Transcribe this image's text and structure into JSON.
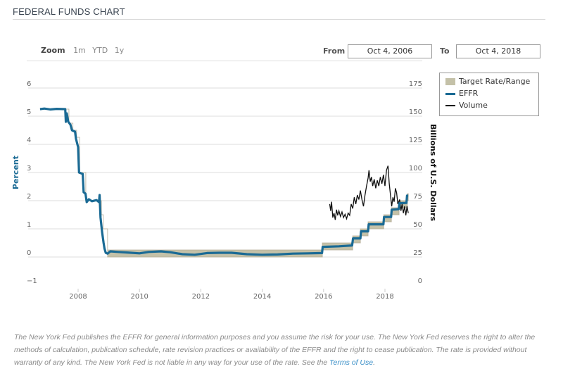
{
  "header": {
    "title": "FEDERAL FUNDS CHART"
  },
  "range_selector": {
    "zoom_label": "Zoom",
    "buttons": [
      "1m",
      "YTD",
      "1y"
    ],
    "from_label": "From",
    "from_value": "Oct 4, 2006",
    "to_label": "To",
    "to_value": "Oct 4, 2018"
  },
  "footer": {
    "text": "The New York Fed publishes the EFFR for general information purposes and you assume the risk for your use. The New York Fed reserves the right to alter the methods of calculation, publication schedule, rate revision practices or availability of the EFFR and the right to cease publication. The rate is provided without warranty of any kind. The New York Fed is not liable in any way for your use of the rate. See the ",
    "link": "Terms of Use",
    "end": "."
  },
  "chart_data": {
    "type": "line",
    "ylabel": "Percent",
    "y2label": "Billions of U.S. Dollars",
    "ylim": [
      -1,
      6
    ],
    "y2lim": [
      0,
      175
    ],
    "yticks": [
      "6",
      "5",
      "4",
      "3",
      "2",
      "1",
      "0",
      "−1"
    ],
    "y2ticks": [
      "175",
      "150",
      "125",
      "100",
      "75",
      "50",
      "25",
      "0"
    ],
    "xticks": [
      "2008",
      "2010",
      "2012",
      "2014",
      "2016",
      "2018"
    ],
    "grid": true,
    "legend_position": "top-right",
    "legend": [
      {
        "name": "Target Rate/Range",
        "color": "#c4c1a8"
      },
      {
        "name": "EFFR",
        "color": "#1a6a94"
      },
      {
        "name": "Volume",
        "color": "#111111"
      }
    ],
    "target_range": [
      [
        2006.76,
        5.25,
        5.25
      ],
      [
        2007.7,
        4.75,
        4.75
      ],
      [
        2007.83,
        4.5,
        4.5
      ],
      [
        2007.95,
        4.25,
        4.25
      ],
      [
        2008.05,
        3.0,
        3.0
      ],
      [
        2008.25,
        2.0,
        2.0
      ],
      [
        2008.76,
        1.5,
        1.5
      ],
      [
        2008.82,
        1.0,
        1.0
      ],
      [
        2008.96,
        0,
        0.25
      ],
      [
        2015.96,
        0.25,
        0.5
      ],
      [
        2016.95,
        0.5,
        0.75
      ],
      [
        2017.2,
        0.75,
        1.0
      ],
      [
        2017.45,
        1.0,
        1.25
      ],
      [
        2017.96,
        1.25,
        1.5
      ],
      [
        2018.21,
        1.5,
        1.75
      ],
      [
        2018.46,
        1.75,
        2.0
      ],
      [
        2018.73,
        2.0,
        2.25
      ],
      [
        2018.76,
        2.0,
        2.25
      ]
    ],
    "effr": [
      [
        2006.76,
        5.25
      ],
      [
        2006.9,
        5.27
      ],
      [
        2007.1,
        5.24
      ],
      [
        2007.3,
        5.26
      ],
      [
        2007.58,
        5.25
      ],
      [
        2007.6,
        4.8
      ],
      [
        2007.63,
        5.1
      ],
      [
        2007.68,
        4.8
      ],
      [
        2007.75,
        4.7
      ],
      [
        2007.8,
        4.5
      ],
      [
        2007.9,
        4.45
      ],
      [
        2007.93,
        4.2
      ],
      [
        2008.0,
        3.9
      ],
      [
        2008.03,
        3.0
      ],
      [
        2008.15,
        2.95
      ],
      [
        2008.18,
        2.3
      ],
      [
        2008.24,
        2.25
      ],
      [
        2008.28,
        1.95
      ],
      [
        2008.35,
        2.05
      ],
      [
        2008.45,
        1.98
      ],
      [
        2008.6,
        2.02
      ],
      [
        2008.68,
        1.95
      ],
      [
        2008.7,
        2.2
      ],
      [
        2008.73,
        1.4
      ],
      [
        2008.78,
        0.9
      ],
      [
        2008.83,
        0.5
      ],
      [
        2008.86,
        0.3
      ],
      [
        2008.9,
        0.15
      ],
      [
        2008.96,
        0.12
      ],
      [
        2009.05,
        0.2
      ],
      [
        2009.3,
        0.18
      ],
      [
        2009.6,
        0.16
      ],
      [
        2010.0,
        0.13
      ],
      [
        2010.3,
        0.18
      ],
      [
        2010.7,
        0.2
      ],
      [
        2011.0,
        0.17
      ],
      [
        2011.4,
        0.1
      ],
      [
        2011.8,
        0.08
      ],
      [
        2012.2,
        0.14
      ],
      [
        2012.6,
        0.15
      ],
      [
        2013.0,
        0.15
      ],
      [
        2013.5,
        0.1
      ],
      [
        2014.0,
        0.08
      ],
      [
        2014.5,
        0.09
      ],
      [
        2015.0,
        0.12
      ],
      [
        2015.5,
        0.13
      ],
      [
        2015.95,
        0.14
      ],
      [
        2015.97,
        0.36
      ],
      [
        2016.5,
        0.38
      ],
      [
        2016.93,
        0.41
      ],
      [
        2016.96,
        0.66
      ],
      [
        2017.2,
        0.66
      ],
      [
        2017.22,
        0.91
      ],
      [
        2017.45,
        0.91
      ],
      [
        2017.47,
        1.16
      ],
      [
        2017.95,
        1.16
      ],
      [
        2017.97,
        1.42
      ],
      [
        2018.2,
        1.42
      ],
      [
        2018.22,
        1.68
      ],
      [
        2018.45,
        1.7
      ],
      [
        2018.47,
        1.91
      ],
      [
        2018.7,
        1.92
      ],
      [
        2018.72,
        2.18
      ],
      [
        2018.76,
        2.18
      ]
    ],
    "volume": [
      [
        2016.2,
        72
      ],
      [
        2016.23,
        66
      ],
      [
        2016.26,
        74
      ],
      [
        2016.3,
        60
      ],
      [
        2016.34,
        64
      ],
      [
        2016.38,
        58
      ],
      [
        2016.42,
        67
      ],
      [
        2016.46,
        62
      ],
      [
        2016.5,
        66
      ],
      [
        2016.55,
        61
      ],
      [
        2016.6,
        65
      ],
      [
        2016.65,
        60
      ],
      [
        2016.7,
        63
      ],
      [
        2016.75,
        59
      ],
      [
        2016.8,
        64
      ],
      [
        2016.85,
        62
      ],
      [
        2016.9,
        72
      ],
      [
        2016.95,
        68
      ],
      [
        2017.0,
        78
      ],
      [
        2017.05,
        72
      ],
      [
        2017.1,
        80
      ],
      [
        2017.15,
        76
      ],
      [
        2017.2,
        84
      ],
      [
        2017.25,
        76
      ],
      [
        2017.3,
        70
      ],
      [
        2017.35,
        80
      ],
      [
        2017.4,
        88
      ],
      [
        2017.45,
        95
      ],
      [
        2017.48,
        102
      ],
      [
        2017.52,
        92
      ],
      [
        2017.56,
        96
      ],
      [
        2017.6,
        88
      ],
      [
        2017.65,
        94
      ],
      [
        2017.7,
        86
      ],
      [
        2017.75,
        93
      ],
      [
        2017.8,
        88
      ],
      [
        2017.85,
        96
      ],
      [
        2017.9,
        90
      ],
      [
        2017.95,
        98
      ],
      [
        2018.0,
        88
      ],
      [
        2018.05,
        102
      ],
      [
        2018.1,
        106
      ],
      [
        2018.14,
        90
      ],
      [
        2018.18,
        80
      ],
      [
        2018.22,
        70
      ],
      [
        2018.26,
        78
      ],
      [
        2018.3,
        74
      ],
      [
        2018.34,
        86
      ],
      [
        2018.38,
        82
      ],
      [
        2018.42,
        72
      ],
      [
        2018.48,
        76
      ],
      [
        2018.52,
        66
      ],
      [
        2018.56,
        72
      ],
      [
        2018.6,
        64
      ],
      [
        2018.64,
        70
      ],
      [
        2018.68,
        62
      ],
      [
        2018.72,
        70
      ],
      [
        2018.76,
        64
      ]
    ]
  }
}
